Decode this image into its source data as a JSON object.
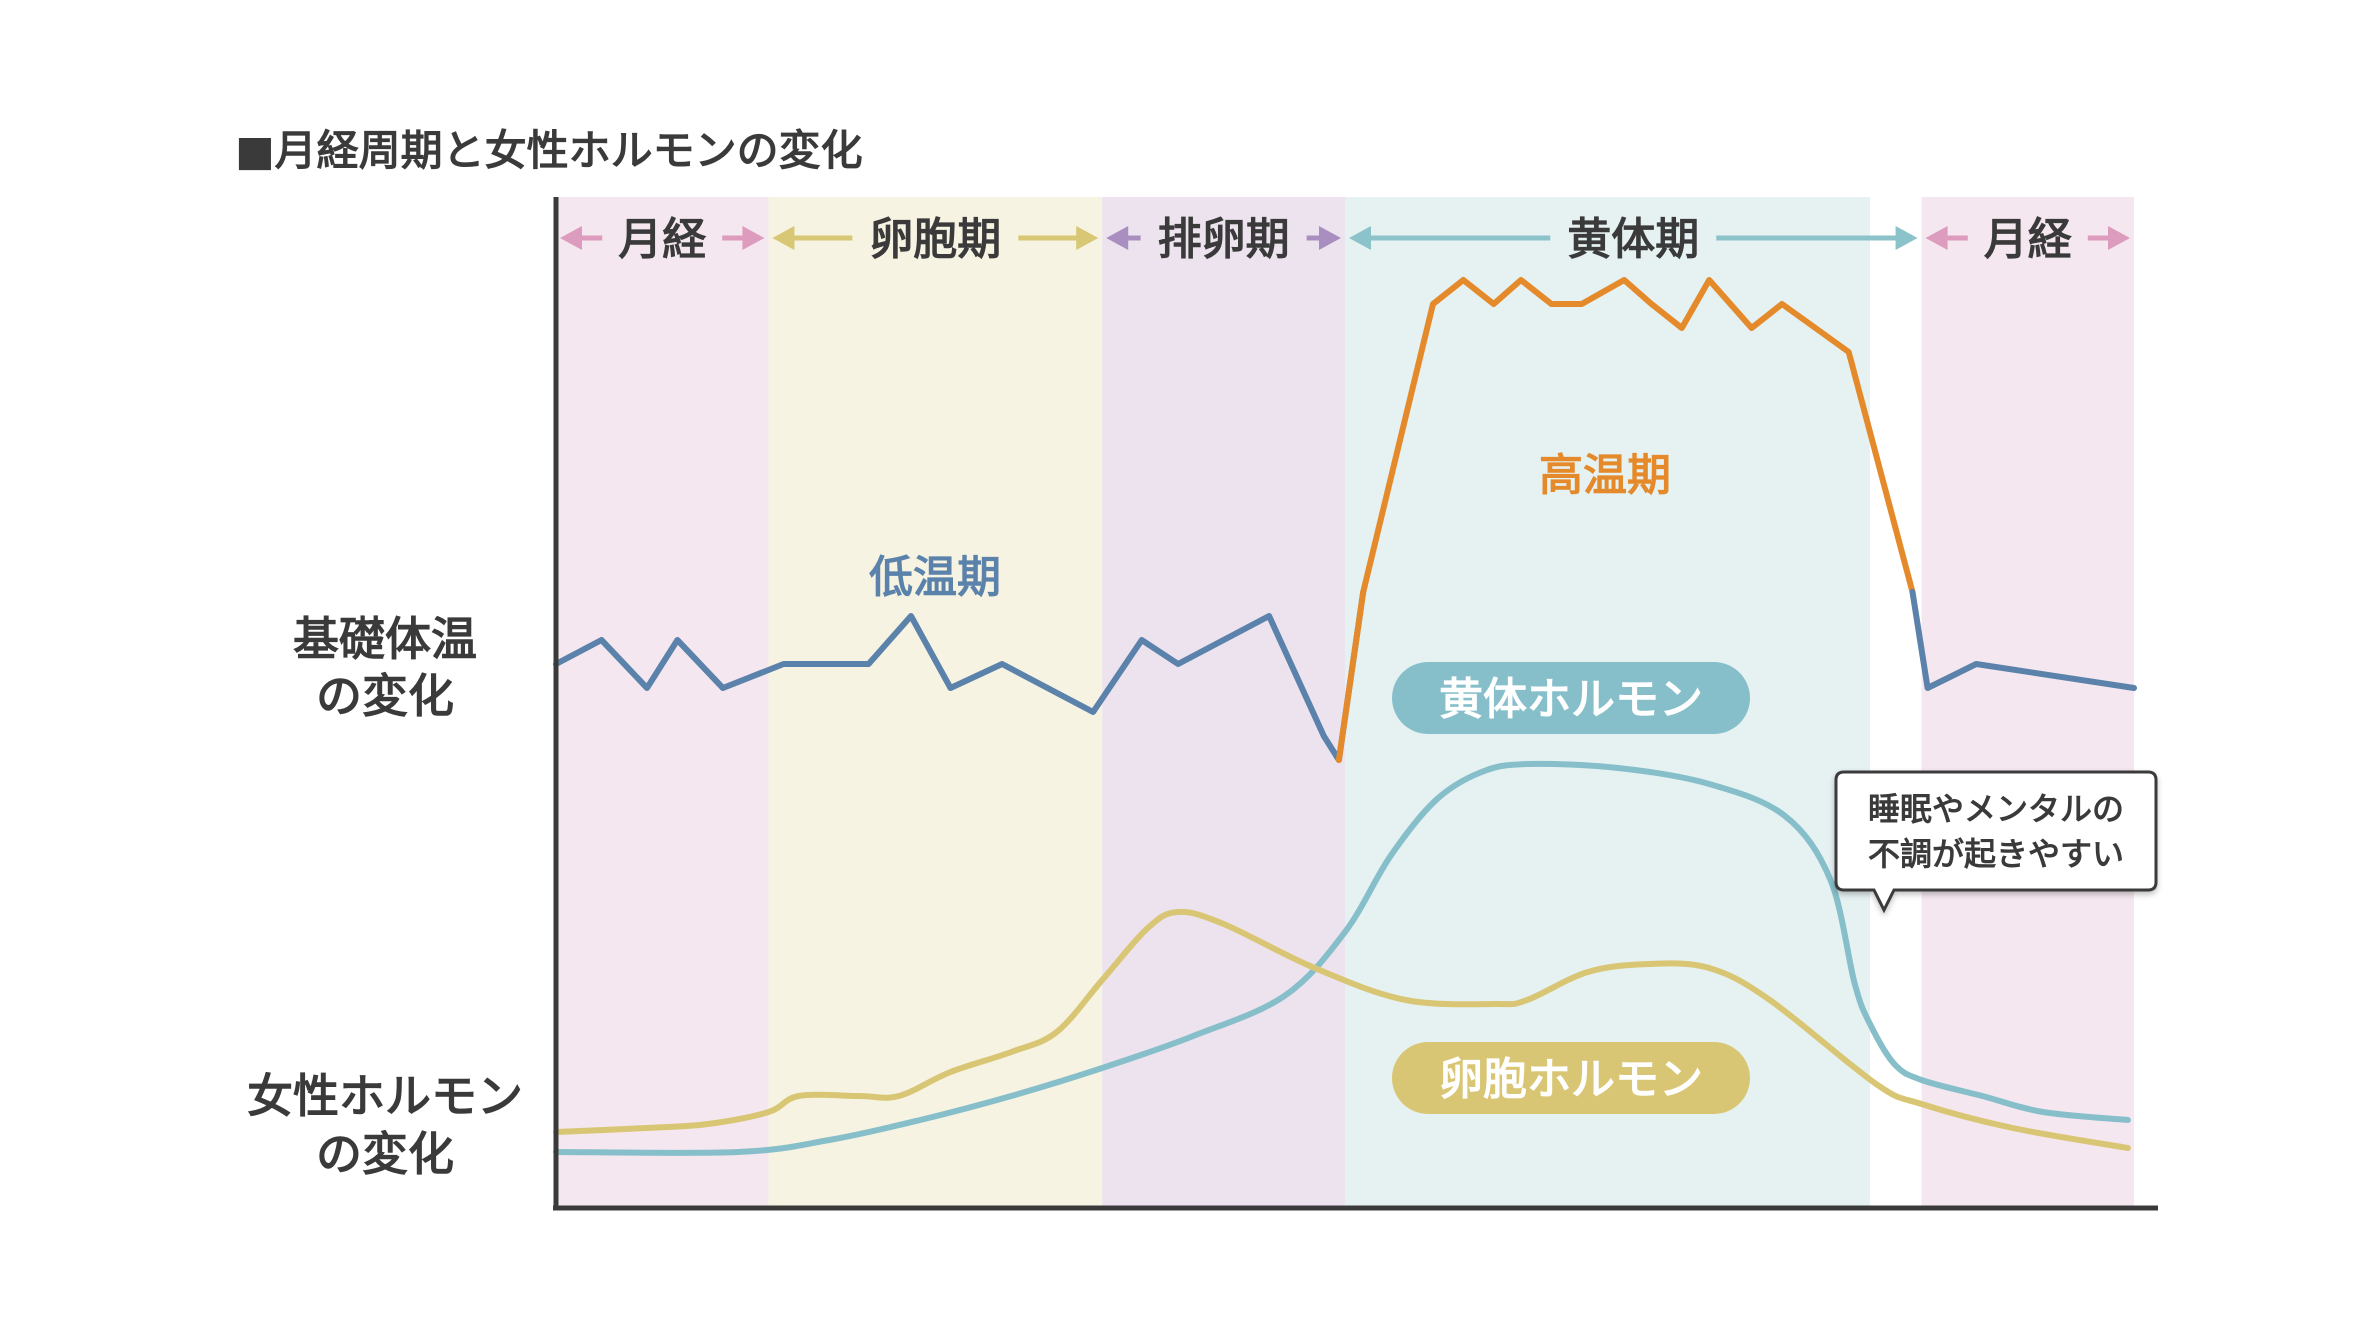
{
  "title": "■月経周期と女性ホルモンの変化",
  "ylabels": {
    "temperature": [
      "基礎体温",
      "の変化"
    ],
    "hormone": [
      "女性ホルモン",
      "の変化"
    ]
  },
  "annotations": {
    "low_temp": "低温期",
    "high_temp": "高温期"
  },
  "pills": {
    "progesterone": "黄体ホルモン",
    "estrogen": "卵胞ホルモン"
  },
  "callout": {
    "lines": [
      "睡眠やメンタルの",
      "不調が起きやすい"
    ]
  },
  "colors": {
    "menstruation_bg": "#f4e7ef",
    "follicular_bg": "#f6f3e3",
    "ovulation_bg": "#ede3ef",
    "luteal_bg": "#e6f1f2",
    "menstruation_arrow": "#dd9bbd",
    "follicular_arrow": "#d8c774",
    "ovulation_arrow": "#a98fc0",
    "luteal_arrow": "#8cc3cb",
    "temp_low": "#5b82aa",
    "temp_high": "#e48a2a",
    "progesterone": "#86bfca",
    "estrogen": "#d9c674",
    "axis": "#3a3a3a"
  },
  "chart_data": {
    "type": "line",
    "x": [
      1,
      3,
      5,
      7,
      9,
      11,
      13,
      15,
      17,
      19,
      21,
      23,
      25,
      27,
      29,
      31,
      33
    ],
    "phases": [
      {
        "name": "月経",
        "start": 0,
        "end": 7
      },
      {
        "name": "卵胞期",
        "start": 7,
        "end": 18
      },
      {
        "name": "排卵期",
        "start": 18,
        "end": 26
      },
      {
        "name": "黄体期",
        "start": 26,
        "end": 45
      },
      {
        "name": "月経",
        "start": 45,
        "end": 52
      }
    ],
    "series": [
      {
        "key": "temperature",
        "x": [
          0,
          1.5,
          3,
          4,
          5.5,
          7.5,
          10.3,
          11.7,
          13,
          14.7,
          17.7,
          19.3,
          20.5,
          23.5,
          25.3,
          25.8,
          26.6,
          28.9,
          29.9,
          30.9,
          31.8,
          32.8,
          33.8,
          35.2,
          36.1,
          37.1,
          38,
          39.4,
          40.4,
          41.5,
          42.6,
          44.7,
          45.2,
          46.8,
          52
        ],
        "values": [
          35.6,
          35.7,
          35.5,
          35.7,
          35.5,
          35.6,
          35.6,
          35.8,
          35.5,
          35.6,
          35.4,
          35.7,
          35.6,
          35.8,
          35.3,
          35.2,
          35.9,
          37.1,
          37.2,
          37.1,
          37.2,
          37.1,
          37.1,
          37.2,
          37.1,
          37.0,
          37.2,
          37.0,
          37.1,
          37.0,
          36.9,
          35.9,
          35.5,
          35.6,
          35.5
        ],
        "high_range": [
          25.9,
          44.7
        ],
        "color_low": "#5b82aa",
        "color_high": "#e48a2a"
      },
      {
        "key": "progesterone",
        "x": [
          0,
          6,
          9,
          12,
          15,
          18,
          21,
          24,
          26,
          27.5,
          29,
          30.5,
          32,
          35,
          38,
          40.5,
          42,
          42.8,
          43.3,
          44.1,
          45,
          47,
          49,
          51.8
        ],
        "values": [
          2,
          2,
          5,
          10,
          16,
          23,
          31,
          41,
          57,
          76,
          90,
          97,
          99,
          98,
          94,
          86,
          70,
          44,
          34,
          24,
          20,
          16,
          12,
          10
        ],
        "color": "#86bfca"
      },
      {
        "key": "estrogen",
        "x": [
          0,
          3,
          5,
          7,
          8,
          10,
          11.3,
          13,
          15,
          16.5,
          18,
          19.5,
          20.5,
          22,
          25,
          28,
          31,
          32,
          34,
          36,
          38,
          40,
          43.5,
          45,
          48,
          51.8
        ],
        "values": [
          7,
          8,
          9,
          12,
          16,
          16,
          16,
          22,
          27,
          32,
          45,
          58,
          62,
          59,
          48,
          40,
          39,
          40,
          47,
          49,
          48,
          40,
          19,
          14,
          8,
          3
        ],
        "color": "#d9c674"
      }
    ]
  }
}
